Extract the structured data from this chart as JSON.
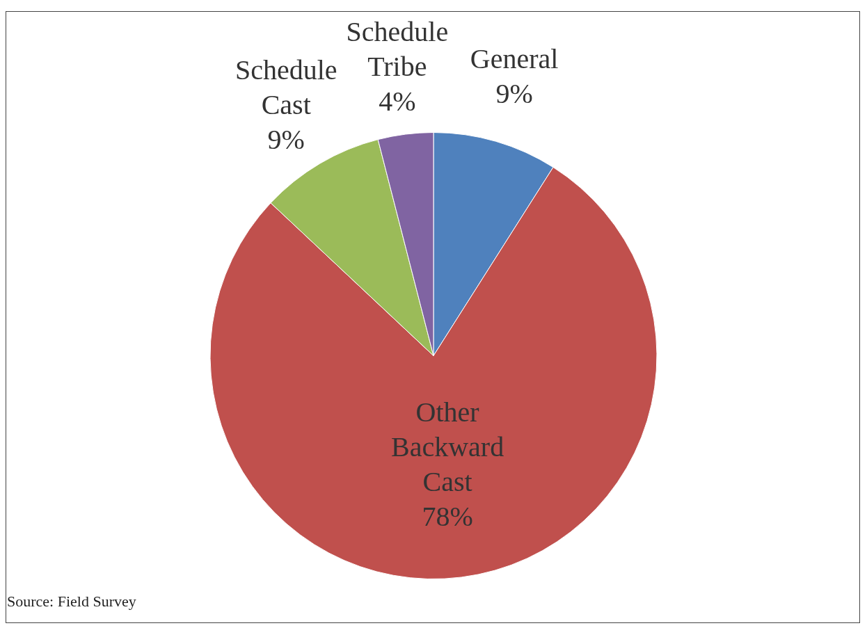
{
  "chart_data": {
    "type": "pie",
    "categories": [
      "General",
      "Other Backward Cast",
      "Schedule Cast",
      "Schedule Tribe"
    ],
    "values": [
      9,
      78,
      9,
      4
    ],
    "colors": [
      "#4f81bd",
      "#c0504d",
      "#9bbb59",
      "#8064a2"
    ],
    "value_labels": [
      "9%",
      "78%",
      "9%",
      "4%"
    ],
    "annotations": [
      "Source: Field Survey"
    ]
  }
}
